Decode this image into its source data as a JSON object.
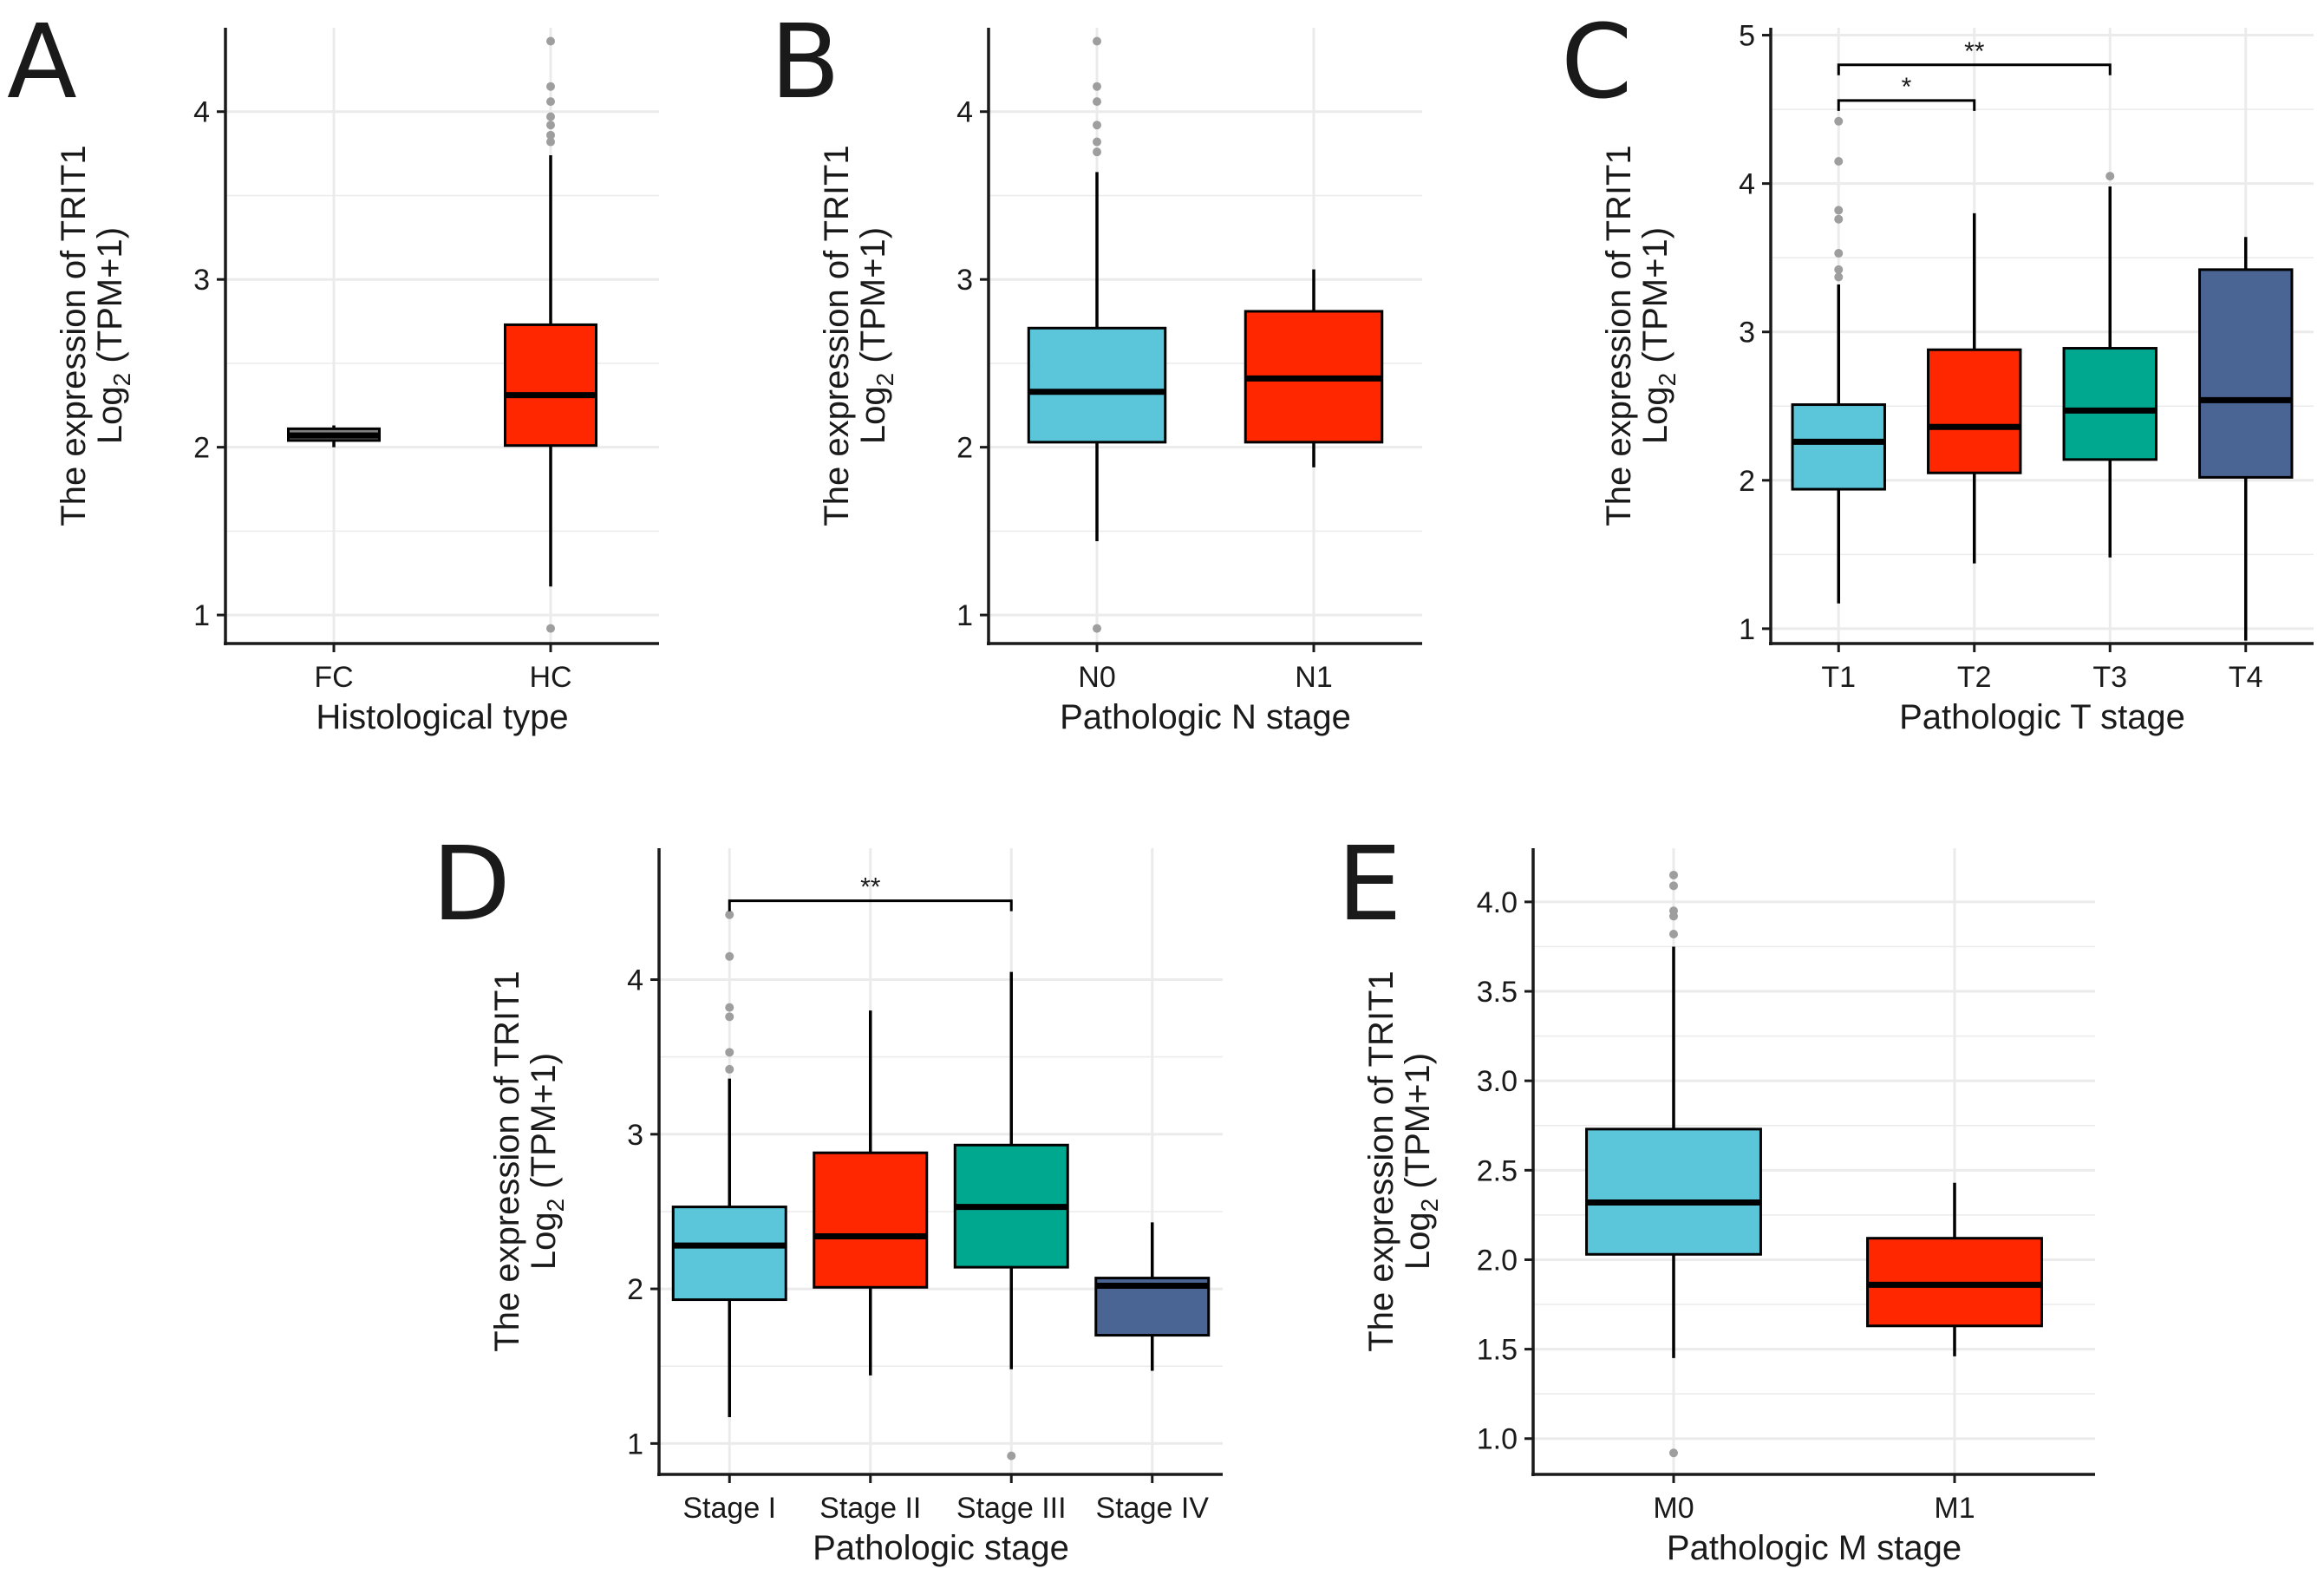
{
  "figure": {
    "ylabel_line1": "The expression of TRIT1",
    "ylabel_line2_prefix": "Log",
    "ylabel_line2_sub": "2",
    "ylabel_line2_suffix": " (TPM+1)"
  },
  "colors": {
    "cyan": "#5BC5DA",
    "red": "#FF2700",
    "teal": "#00A88F",
    "navy": "#4A6494",
    "gray": "#7F7F7F",
    "grid": "#EBEBEB"
  },
  "chart_data": [
    {
      "panel": "A",
      "type": "box",
      "title": "",
      "xlabel": "Histological type",
      "ylabel": "The expression of TRIT1 Log2 (TPM+1)",
      "ylim": [
        0.83,
        4.5
      ],
      "yticks": [
        1,
        2,
        3,
        4
      ],
      "ytick_labels": [
        "1",
        "2",
        "3",
        "4"
      ],
      "categories": [
        "FC",
        "HC"
      ],
      "boxes": [
        {
          "category": "FC",
          "color": "#7F7F7F",
          "q1": 2.04,
          "median": 2.07,
          "q3": 2.11,
          "whisker_low": 2.0,
          "whisker_high": 2.13,
          "outliers": []
        },
        {
          "category": "HC",
          "color": "#FF2700",
          "q1": 2.01,
          "median": 2.31,
          "q3": 2.73,
          "whisker_low": 1.17,
          "whisker_high": 3.74,
          "outliers": [
            0.92,
            3.82,
            3.86,
            3.92,
            3.97,
            4.06,
            4.15,
            4.42
          ]
        }
      ],
      "significance": []
    },
    {
      "panel": "B",
      "type": "box",
      "title": "",
      "xlabel": "Pathologic N stage",
      "ylabel": "The expression of TRIT1 Log2 (TPM+1)",
      "ylim": [
        0.83,
        4.5
      ],
      "yticks": [
        1,
        2,
        3,
        4
      ],
      "ytick_labels": [
        "1",
        "2",
        "3",
        "4"
      ],
      "categories": [
        "N0",
        "N1"
      ],
      "boxes": [
        {
          "category": "N0",
          "color": "#5BC5DA",
          "q1": 2.03,
          "median": 2.33,
          "q3": 2.71,
          "whisker_low": 1.44,
          "whisker_high": 3.64,
          "outliers": [
            0.92,
            3.76,
            3.82,
            3.92,
            4.06,
            4.15,
            4.42
          ]
        },
        {
          "category": "N1",
          "color": "#FF2700",
          "q1": 2.03,
          "median": 2.41,
          "q3": 2.81,
          "whisker_low": 1.88,
          "whisker_high": 3.06,
          "outliers": []
        }
      ],
      "significance": []
    },
    {
      "panel": "C",
      "type": "box",
      "title": "",
      "xlabel": "Pathologic T stage",
      "ylabel": "The expression of TRIT1 Log2 (TPM+1)",
      "ylim": [
        0.9,
        5.05
      ],
      "yticks": [
        1,
        2,
        3,
        4,
        5
      ],
      "ytick_labels": [
        "1",
        "2",
        "3",
        "4",
        "5"
      ],
      "categories": [
        "T1",
        "T2",
        "T3",
        "T4"
      ],
      "boxes": [
        {
          "category": "T1",
          "color": "#5BC5DA",
          "q1": 1.94,
          "median": 2.26,
          "q3": 2.51,
          "whisker_low": 1.17,
          "whisker_high": 3.32,
          "outliers": [
            3.37,
            3.42,
            3.53,
            3.76,
            3.82,
            4.15,
            4.42
          ]
        },
        {
          "category": "T2",
          "color": "#FF2700",
          "q1": 2.05,
          "median": 2.36,
          "q3": 2.88,
          "whisker_low": 1.44,
          "whisker_high": 3.8,
          "outliers": []
        },
        {
          "category": "T3",
          "color": "#00A88F",
          "q1": 2.14,
          "median": 2.47,
          "q3": 2.89,
          "whisker_low": 1.48,
          "whisker_high": 3.98,
          "outliers": [
            4.05
          ]
        },
        {
          "category": "T4",
          "color": "#4A6494",
          "q1": 2.02,
          "median": 2.54,
          "q3": 3.42,
          "whisker_low": 0.92,
          "whisker_high": 3.64,
          "outliers": []
        }
      ],
      "significance": [
        {
          "from": "T1",
          "to": "T2",
          "y": 4.56,
          "label": "*"
        },
        {
          "from": "T1",
          "to": "T3",
          "y": 4.8,
          "label": "**"
        }
      ]
    },
    {
      "panel": "D",
      "type": "box",
      "title": "",
      "xlabel": "Pathologic stage",
      "ylabel": "The expression of TRIT1 Log2 (TPM+1)",
      "ylim": [
        0.8,
        4.85
      ],
      "yticks": [
        1,
        2,
        3,
        4
      ],
      "ytick_labels": [
        "1",
        "2",
        "3",
        "4"
      ],
      "categories": [
        "Stage I",
        "Stage II",
        "Stage III",
        "Stage IV"
      ],
      "boxes": [
        {
          "category": "Stage I",
          "color": "#5BC5DA",
          "q1": 1.93,
          "median": 2.28,
          "q3": 2.53,
          "whisker_low": 1.17,
          "whisker_high": 3.36,
          "outliers": [
            3.42,
            3.53,
            3.76,
            3.82,
            4.15,
            4.42
          ]
        },
        {
          "category": "Stage II",
          "color": "#FF2700",
          "q1": 2.01,
          "median": 2.34,
          "q3": 2.88,
          "whisker_low": 1.44,
          "whisker_high": 3.8,
          "outliers": []
        },
        {
          "category": "Stage III",
          "color": "#00A88F",
          "q1": 2.14,
          "median": 2.53,
          "q3": 2.93,
          "whisker_low": 1.48,
          "whisker_high": 4.05,
          "outliers": [
            0.92
          ]
        },
        {
          "category": "Stage IV",
          "color": "#4A6494",
          "q1": 1.7,
          "median": 2.02,
          "q3": 2.07,
          "whisker_low": 1.47,
          "whisker_high": 2.43,
          "outliers": []
        }
      ],
      "significance": [
        {
          "from": "Stage I",
          "to": "Stage III",
          "y": 4.51,
          "label": "**"
        }
      ]
    },
    {
      "panel": "E",
      "type": "box",
      "title": "",
      "xlabel": "Pathologic M stage",
      "ylabel": "The expression of TRIT1 Log2 (TPM+1)",
      "ylim": [
        0.8,
        4.3
      ],
      "yticks": [
        1.0,
        1.5,
        2.0,
        2.5,
        3.0,
        3.5,
        4.0
      ],
      "ytick_labels": [
        "1.0",
        "1.5",
        "2.0",
        "2.5",
        "3.0",
        "3.5",
        "4.0"
      ],
      "categories": [
        "M0",
        "M1"
      ],
      "boxes": [
        {
          "category": "M0",
          "color": "#5BC5DA",
          "q1": 2.03,
          "median": 2.32,
          "q3": 2.73,
          "whisker_low": 1.45,
          "whisker_high": 3.75,
          "outliers": [
            0.92,
            3.82,
            3.92,
            3.95,
            4.09,
            4.15
          ]
        },
        {
          "category": "M1",
          "color": "#FF2700",
          "q1": 1.63,
          "median": 1.86,
          "q3": 2.12,
          "whisker_low": 1.46,
          "whisker_high": 2.43,
          "outliers": []
        }
      ],
      "significance": []
    }
  ]
}
